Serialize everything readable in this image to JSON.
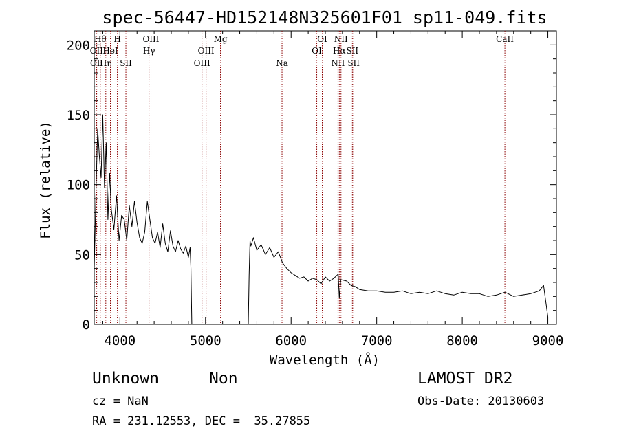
{
  "chart_data": {
    "type": "line",
    "title": "spec-56447-HD152148N325601F01_sp11-049.fits",
    "xlabel": "Wavelength (Å)",
    "ylabel": "Flux (relative)",
    "xlim": [
      3700,
      9100
    ],
    "ylim": [
      0,
      210
    ],
    "xticks": [
      4000,
      5000,
      6000,
      7000,
      8000,
      9000
    ],
    "yticks": [
      0,
      50,
      100,
      150,
      200
    ],
    "grid": false,
    "series": [
      {
        "x": [
          3700,
          3720,
          3740,
          3760,
          3780,
          3800,
          3820,
          3840,
          3860,
          3880,
          3900,
          3930,
          3960,
          3990,
          4020,
          4050,
          4080,
          4110,
          4140,
          4170,
          4200,
          4230,
          4260,
          4290,
          4320,
          4350,
          4380,
          4410,
          4440,
          4470,
          4500,
          4530,
          4560,
          4590,
          4620,
          4650,
          4680,
          4710,
          4740,
          4770,
          4800,
          4820,
          4830,
          4840,
          5500,
          5510,
          5520,
          5530,
          5560,
          5600,
          5650,
          5700,
          5750,
          5800,
          5850,
          5900,
          5950,
          6000,
          6050,
          6100,
          6150,
          6200,
          6250,
          6300,
          6350,
          6400,
          6450,
          6500,
          6550,
          6563,
          6580,
          6650,
          6700,
          6750,
          6800,
          6900,
          7000,
          7100,
          7200,
          7300,
          7400,
          7500,
          7600,
          7700,
          7800,
          7900,
          8000,
          8100,
          8200,
          8300,
          8400,
          8500,
          8600,
          8700,
          8800,
          8900,
          8950,
          9000
        ],
        "y": [
          40,
          95,
          140,
          120,
          105,
          150,
          98,
          130,
          75,
          108,
          82,
          68,
          92,
          60,
          78,
          75,
          60,
          85,
          70,
          88,
          73,
          62,
          58,
          66,
          88,
          75,
          62,
          58,
          66,
          55,
          72,
          58,
          52,
          67,
          56,
          52,
          60,
          54,
          51,
          56,
          48,
          55,
          40,
          0,
          0,
          35,
          60,
          56,
          62,
          53,
          57,
          50,
          55,
          48,
          52,
          44,
          40,
          37,
          35,
          33,
          34,
          31,
          33,
          32,
          29,
          34,
          31,
          33,
          36,
          19,
          32,
          31,
          28,
          27,
          25,
          24,
          24,
          23,
          23,
          24,
          22,
          23,
          22,
          24,
          22,
          21,
          23,
          22,
          22,
          20,
          21,
          23,
          20,
          21,
          22,
          24,
          28,
          5
        ]
      }
    ],
    "lines": [
      {
        "label": "OII",
        "x": 3727,
        "row": 2
      },
      {
        "label": "OII",
        "x": 3729,
        "row": 3
      },
      {
        "label": "Hθ",
        "x": 3771,
        "row": 1
      },
      {
        "label": "Hη",
        "x": 3835,
        "row": 3
      },
      {
        "label": "HeI",
        "x": 3889,
        "row": 2
      },
      {
        "label": "H",
        "x": 3970,
        "row": 1
      },
      {
        "label": "SII",
        "x": 4070,
        "row": 3
      },
      {
        "label": "Hγ",
        "x": 4340,
        "row": 2
      },
      {
        "label": "OIII",
        "x": 4363,
        "row": 1
      },
      {
        "label": "OIII",
        "x": 4959,
        "row": 3
      },
      {
        "label": "OIII",
        "x": 5007,
        "row": 2
      },
      {
        "label": "Mg",
        "x": 5175,
        "row": 1
      },
      {
        "label": "Na",
        "x": 5894,
        "row": 3
      },
      {
        "label": "OI",
        "x": 6300,
        "row": 2
      },
      {
        "label": "OI",
        "x": 6364,
        "row": 1
      },
      {
        "label": "NII",
        "x": 6548,
        "row": 3
      },
      {
        "label": "Hα",
        "x": 6563,
        "row": 2
      },
      {
        "label": "NII",
        "x": 6583,
        "row": 1
      },
      {
        "label": "SII",
        "x": 6716,
        "row": 2
      },
      {
        "label": "SII",
        "x": 6731,
        "row": 3
      },
      {
        "label": "CaII",
        "x": 8498,
        "row": 1
      }
    ]
  },
  "info": {
    "class": "Unknown",
    "subclass": "Non",
    "survey": "LAMOST DR2",
    "cz": "cz = NaN",
    "obs_date": "Obs-Date: 20130603",
    "coords": "RA = 231.12553, DEC =  35.27855"
  }
}
